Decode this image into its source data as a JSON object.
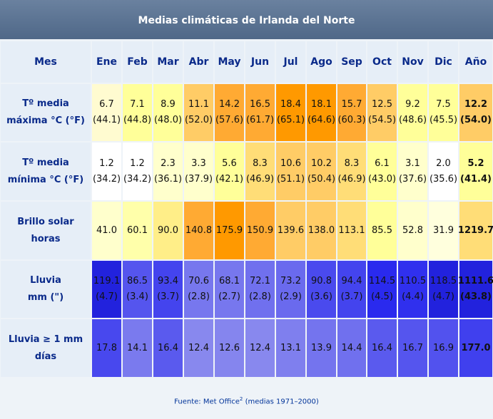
{
  "title": "Medias climáticas de Irlanda del Norte",
  "table": {
    "header": [
      "Mes",
      "Ene",
      "Feb",
      "Mar",
      "Abr",
      "May",
      "Jun",
      "Jul",
      "Ago",
      "Sep",
      "Oct",
      "Nov",
      "Dic",
      "Año"
    ],
    "rows": [
      {
        "label": [
          "Tº media",
          "máxima °C (°F)"
        ],
        "cells": [
          [
            "6.7",
            "(44.1)"
          ],
          [
            "7.1",
            "(44.8)"
          ],
          [
            "8.9",
            "(48.0)"
          ],
          [
            "11.1",
            "(52.0)"
          ],
          [
            "14.2",
            "(57.6)"
          ],
          [
            "16.5",
            "(61.7)"
          ],
          [
            "18.4",
            "(65.1)"
          ],
          [
            "18.1",
            "(64.6)"
          ],
          [
            "15.7",
            "(60.3)"
          ],
          [
            "12.5",
            "(54.5)"
          ],
          [
            "9.2",
            "(48.6)"
          ],
          [
            "7.5",
            "(45.5)"
          ],
          [
            "12.2",
            "(54.0)"
          ]
        ]
      },
      {
        "label": [
          "Tº media",
          "mínima °C (°F)"
        ],
        "cells": [
          [
            "1.2",
            "(34.2)"
          ],
          [
            "1.2",
            "(34.2)"
          ],
          [
            "2.3",
            "(36.1)"
          ],
          [
            "3.3",
            "(37.9)"
          ],
          [
            "5.6",
            "(42.1)"
          ],
          [
            "8.3",
            "(46.9)"
          ],
          [
            "10.6",
            "(51.1)"
          ],
          [
            "10.2",
            "(50.4)"
          ],
          [
            "8.3",
            "(46.9)"
          ],
          [
            "6.1",
            "(43.0)"
          ],
          [
            "3.1",
            "(37.6)"
          ],
          [
            "2.0",
            "(35.6)"
          ],
          [
            "5.2",
            "(41.4)"
          ]
        ]
      },
      {
        "label": [
          "Brillo solar",
          "horas"
        ],
        "cells": [
          [
            "41.0"
          ],
          [
            "60.1"
          ],
          [
            "90.0"
          ],
          [
            "140.8"
          ],
          [
            "175.9"
          ],
          [
            "150.9"
          ],
          [
            "139.6"
          ],
          [
            "138.0"
          ],
          [
            "113.1"
          ],
          [
            "85.5"
          ],
          [
            "52.8"
          ],
          [
            "31.9"
          ],
          [
            "1219.7"
          ]
        ]
      },
      {
        "label": [
          "Lluvia",
          "mm (\")"
        ],
        "cells": [
          [
            "119.1",
            "(4.7)"
          ],
          [
            "86.5",
            "(3.4)"
          ],
          [
            "93.4",
            "(3.7)"
          ],
          [
            "70.6",
            "(2.8)"
          ],
          [
            "68.1",
            "(2.7)"
          ],
          [
            "72.1",
            "(2.8)"
          ],
          [
            "73.2",
            "(2.9)"
          ],
          [
            "90.8",
            "(3.6)"
          ],
          [
            "94.4",
            "(3.7)"
          ],
          [
            "114.5",
            "(4.5)"
          ],
          [
            "110.5",
            "(4.4)"
          ],
          [
            "118.5",
            "(4.7)"
          ],
          [
            "1111.6",
            "(43.8)"
          ]
        ]
      },
      {
        "label": [
          "Lluvia ≥ 1 mm",
          "días"
        ],
        "cells": [
          [
            "17.8"
          ],
          [
            "14.1"
          ],
          [
            "16.4"
          ],
          [
            "12.4"
          ],
          [
            "12.6"
          ],
          [
            "12.4"
          ],
          [
            "13.1"
          ],
          [
            "13.9"
          ],
          [
            "14.4"
          ],
          [
            "16.4"
          ],
          [
            "16.7"
          ],
          [
            "16.9"
          ],
          [
            "177.0"
          ]
        ]
      }
    ]
  },
  "footer": {
    "source": "Fuente: Met Office",
    "note": "2",
    "period": "(medias 1971–2000)"
  }
}
